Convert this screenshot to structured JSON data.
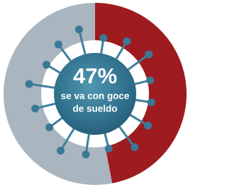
{
  "chart_data": {
    "type": "pie",
    "values": [
      47,
      53
    ],
    "value_labels": [
      "47%",
      null
    ],
    "colors": [
      "#9e1b20",
      "#a9b5bf"
    ],
    "annotation": [
      "se va con goce",
      "de sueldo"
    ]
  }
}
